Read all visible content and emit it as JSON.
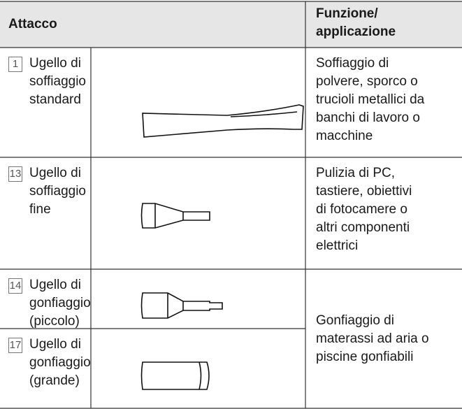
{
  "header": {
    "attacco": "Attacco",
    "funzione": [
      "Funzione/",
      "applicazione"
    ]
  },
  "rows": [
    {
      "number": "1",
      "name": [
        "Ugello di",
        "soffiaggio",
        "standard"
      ]
    },
    {
      "number": "13",
      "name": [
        "Ugello di",
        "soffiaggio",
        "fine"
      ]
    },
    {
      "number": "14",
      "name": [
        "Ugello di",
        "gonfiaggio",
        "(piccolo)"
      ]
    },
    {
      "number": "17",
      "name": [
        "Ugello di",
        "gonfiaggio",
        "(grande)"
      ]
    }
  ],
  "functions": [
    [
      "Soffiaggio di",
      "polvere, sporco o",
      "trucioli metallici da",
      "banchi di lavoro o",
      "macchine"
    ],
    [
      "Pulizia di PC,",
      "tastiere, obiettivi",
      "di fotocamere o",
      "altri componenti",
      "elettrici"
    ],
    [
      "Gonfiaggio di",
      "materassi ad aria o",
      "piscine gonfiabili"
    ]
  ]
}
